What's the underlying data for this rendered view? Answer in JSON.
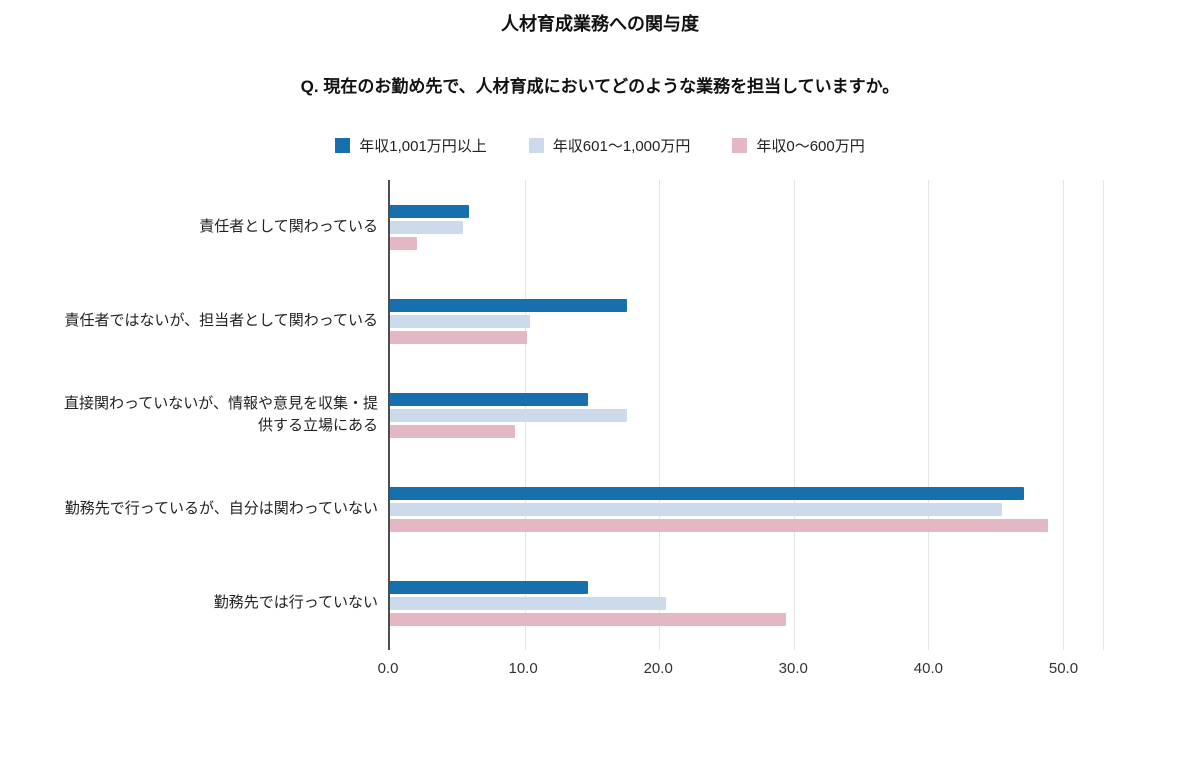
{
  "header": {
    "title": "人材育成業務への関与度",
    "subtitle": "Q. 現在のお勤め先で、人材育成においてどのような業務を担当していますか。"
  },
  "legend": {
    "items": [
      {
        "label": "年収1,001万円以上",
        "color": "#1670ad"
      },
      {
        "label": "年収601〜1,000万円",
        "color": "#ccdaeb"
      },
      {
        "label": "年収0〜600万円",
        "color": "#e3b7c4"
      }
    ]
  },
  "chart_data": {
    "type": "bar",
    "orientation": "horizontal",
    "title": "人材育成業務への関与度",
    "subtitle": "Q. 現在のお勤め先で、人材育成においてどのような業務を担当していますか。",
    "categories": [
      "責任者として関わっている",
      "責任者ではないが、担当者として関わっている",
      "直接関わっていないが、情報や意見を収集・提供する立場にある",
      "勤務先で行っているが、自分は関わっていない",
      "勤務先では行っていない"
    ],
    "series": [
      {
        "name": "年収1,001万円以上",
        "color": "#1670ad",
        "values": [
          5.9,
          17.6,
          14.7,
          47.1,
          14.7
        ]
      },
      {
        "name": "年収601〜1,000万円",
        "color": "#ccdaeb",
        "values": [
          5.4,
          10.4,
          17.6,
          45.5,
          20.5
        ]
      },
      {
        "name": "年収0〜600万円",
        "color": "#e3b7c4",
        "values": [
          2.0,
          10.2,
          9.3,
          48.9,
          29.4
        ]
      }
    ],
    "xlabel": "",
    "ylabel": "",
    "xlim": [
      0,
      53
    ],
    "xticks": [
      0,
      10,
      20,
      30,
      40,
      50
    ],
    "xtick_labels": [
      "0.0",
      "10.0",
      "20.0",
      "30.0",
      "40.0",
      "50.0"
    ],
    "grid": true,
    "legend_position": "top"
  }
}
